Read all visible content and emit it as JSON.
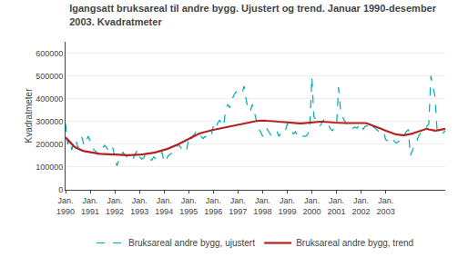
{
  "chart_data": {
    "type": "line",
    "title": "Igangsatt bruksareal til andre bygg. Ujustert og trend. Januar 1990-desember\n2003. Kvadratmeter",
    "ylabel": "Kvadratmeter",
    "categories": [
      "Jan.\n1990",
      null,
      null,
      null,
      null,
      null,
      null,
      null,
      null,
      null,
      null,
      null,
      "Jan.\n1991",
      null,
      null,
      null,
      null,
      null,
      null,
      null,
      null,
      null,
      null,
      null,
      "Jan.\n1992",
      null,
      null,
      null,
      null,
      null,
      null,
      null,
      null,
      null,
      null,
      null,
      "Jan.\n1993",
      null,
      null,
      null,
      null,
      null,
      null,
      null,
      null,
      null,
      null,
      null,
      "Jan.\n1994",
      null,
      null,
      null,
      null,
      null,
      null,
      null,
      null,
      null,
      null,
      null,
      "Jan.\n1995",
      null,
      null,
      null,
      null,
      null,
      null,
      null,
      null,
      null,
      null,
      null,
      "Jan.\n1996",
      null,
      null,
      null,
      null,
      null,
      null,
      null,
      null,
      null,
      null,
      null,
      "Jan.\n1997",
      null,
      null,
      null,
      null,
      null,
      null,
      null,
      null,
      null,
      null,
      null,
      "Jan.\n1998",
      null,
      null,
      null,
      null,
      null,
      null,
      null,
      null,
      null,
      null,
      null,
      "Jan.\n1999",
      null,
      null,
      null,
      null,
      null,
      null,
      null,
      null,
      null,
      null,
      null,
      "Jan.\n2000",
      null,
      null,
      null,
      null,
      null,
      null,
      null,
      null,
      null,
      null,
      null,
      "Jan.\n2001",
      null,
      null,
      null,
      null,
      null,
      null,
      null,
      null,
      null,
      null,
      null,
      "Jan.\n2002",
      null,
      null,
      null,
      null,
      null,
      null,
      null,
      null,
      null,
      null,
      null,
      "Jan.\n2003",
      null,
      null,
      null,
      null,
      null,
      null,
      null,
      null,
      null,
      null,
      null,
      null,
      null,
      null,
      null,
      null,
      null,
      null,
      null,
      null,
      null,
      null,
      null,
      null,
      null,
      null,
      null,
      null,
      null
    ],
    "series": [
      {
        "name": "Bruksareal andre bygg, ujustert",
        "color": "#00aaaa",
        "line_style": "dashed",
        "values": [
          290000,
          200000,
          220000,
          175000,
          205000,
          220000,
          185000,
          215000,
          230000,
          195000,
          210000,
          235000,
          215000,
          185000,
          175000,
          165000,
          155000,
          170000,
          180000,
          195000,
          185000,
          170000,
          165000,
          185000,
          150000,
          105000,
          130000,
          145000,
          165000,
          150000,
          145000,
          155000,
          150000,
          140000,
          155000,
          175000,
          145000,
          135000,
          140000,
          155000,
          145000,
          135000,
          130000,
          145000,
          135000,
          140000,
          155000,
          165000,
          120000,
          130000,
          150000,
          155000,
          165000,
          175000,
          185000,
          200000,
          185000,
          175000,
          165000,
          175000,
          225000,
          215000,
          235000,
          250000,
          260000,
          245000,
          235000,
          225000,
          235000,
          225000,
          230000,
          240000,
          280000,
          265000,
          290000,
          305000,
          295000,
          280000,
          350000,
          375000,
          360000,
          395000,
          415000,
          430000,
          430000,
          420000,
          425000,
          455000,
          395000,
          350000,
          345000,
          375000,
          340000,
          305000,
          270000,
          255000,
          235000,
          250000,
          270000,
          255000,
          240000,
          250000,
          260000,
          255000,
          235000,
          250000,
          245000,
          255000,
          290000,
          270000,
          260000,
          245000,
          255000,
          240000,
          230000,
          240000,
          235000,
          235000,
          245000,
          265000,
          495000,
          320000,
          310000,
          300000,
          280000,
          295000,
          310000,
          295000,
          285000,
          270000,
          260000,
          270000,
          275000,
          450000,
          350000,
          320000,
          300000,
          290000,
          295000,
          280000,
          270000,
          275000,
          270000,
          285000,
          290000,
          265000,
          280000,
          280000,
          295000,
          285000,
          275000,
          270000,
          260000,
          255000,
          250000,
          255000,
          220000,
          215000,
          210000,
          225000,
          215000,
          205000,
          210000,
          220000,
          230000,
          240000,
          255000,
          265000,
          150000,
          175000,
          195000,
          210000,
          235000,
          250000,
          255000,
          265000,
          280000,
          290000,
          500000,
          455000,
          410000,
          265000,
          250000,
          245000,
          250000,
          260000
        ]
      },
      {
        "name": "Bruksareal andre bygg, trend",
        "color": "#b22222",
        "line_style": "solid",
        "values": [
          230000,
          220000,
          210000,
          200000,
          192000,
          185000,
          180000,
          176000,
          173000,
          170000,
          168000,
          167000,
          165000,
          163000,
          162000,
          160000,
          159000,
          158000,
          157000,
          157000,
          156000,
          156000,
          155000,
          155000,
          155000,
          154000,
          154000,
          153000,
          153000,
          152000,
          152000,
          152000,
          152000,
          152000,
          153000,
          153000,
          154000,
          155000,
          156000,
          157000,
          158000,
          160000,
          161000,
          163000,
          165000,
          167000,
          169000,
          172000,
          175000,
          178000,
          181000,
          184000,
          188000,
          192000,
          196000,
          200000,
          204000,
          208000,
          213000,
          218000,
          223000,
          228000,
          233000,
          238000,
          242000,
          246000,
          249000,
          252000,
          255000,
          257000,
          259000,
          261000,
          263000,
          265000,
          267000,
          269000,
          271000,
          273000,
          275000,
          277000,
          279000,
          281000,
          283000,
          285000,
          287000,
          289000,
          291000,
          293000,
          295000,
          297000,
          299000,
          300000,
          301000,
          302000,
          303000,
          304000,
          304000,
          304000,
          303000,
          303000,
          302000,
          302000,
          301000,
          300000,
          299000,
          298000,
          297000,
          296000,
          295000,
          294000,
          293000,
          292000,
          292000,
          292000,
          292000,
          292000,
          293000,
          293000,
          294000,
          295000,
          296000,
          297000,
          298000,
          299000,
          299000,
          299000,
          299000,
          298000,
          298000,
          297000,
          296000,
          295000,
          294000,
          294000,
          293000,
          293000,
          293000,
          293000,
          293000,
          293000,
          293000,
          293000,
          294000,
          295000,
          295000,
          294000,
          293000,
          291000,
          288000,
          285000,
          282000,
          278000,
          275000,
          271000,
          267000,
          263000,
          259000,
          256000,
          252000,
          249000,
          246000,
          244000,
          242000,
          241000,
          240000,
          240000,
          241000,
          242000,
          244000,
          247000,
          250000,
          253000,
          257000,
          261000,
          264000,
          267000,
          268000,
          265000,
          263000,
          261000,
          260000,
          261000,
          263000,
          265000,
          267000,
          268000
        ]
      }
    ],
    "ylim": [
      0,
      650000
    ],
    "yticks": [
      0,
      100000,
      200000,
      300000,
      400000,
      500000,
      600000
    ],
    "grid": true,
    "legend": "bottom"
  }
}
